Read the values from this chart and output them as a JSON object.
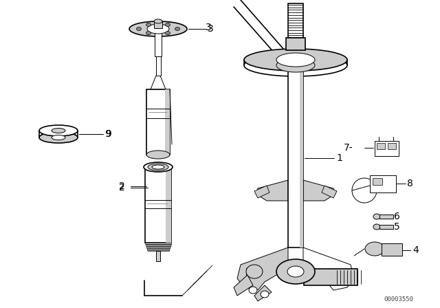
{
  "bg_color": "#ffffff",
  "line_color": "#000000",
  "shade_color": "#cccccc",
  "dark_shade": "#888888",
  "watermark": "00003550",
  "fig_width": 6.4,
  "fig_height": 4.48,
  "dpi": 100
}
